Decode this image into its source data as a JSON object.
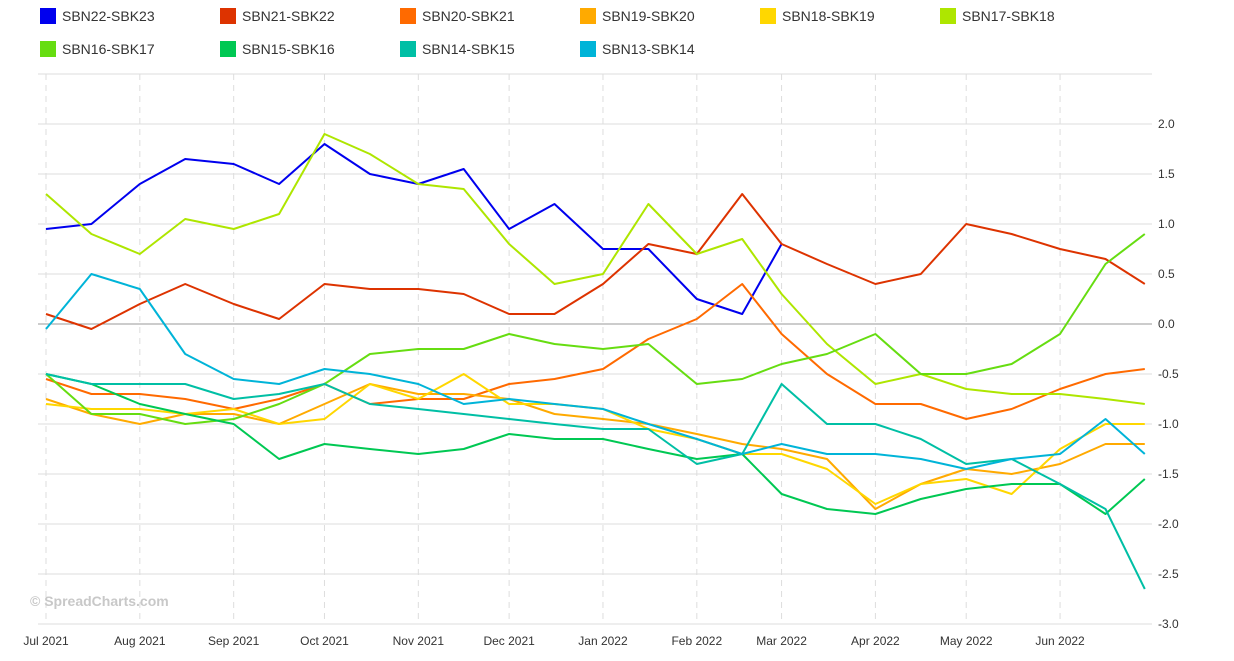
{
  "chart_data": {
    "type": "line",
    "title": "",
    "xlabel": "",
    "ylabel": "",
    "ylim": [
      -3.0,
      2.5
    ],
    "yticks": [
      "2.0",
      "1.5",
      "1.0",
      "0.5",
      "0.0",
      "-0.5",
      "-1.0",
      "-1.5",
      "-2.0",
      "-2.5",
      "-3.0"
    ],
    "ytick_values": [
      2.0,
      1.5,
      1.0,
      0.5,
      0.0,
      -0.5,
      -1.0,
      -1.5,
      -2.0,
      -2.5,
      -3.0
    ],
    "xticks": [
      {
        "label": "Jul 2021",
        "date": "2021-07-01"
      },
      {
        "label": "Aug 2021",
        "date": "2021-08-01"
      },
      {
        "label": "Sep 2021",
        "date": "2021-09-01"
      },
      {
        "label": "Oct 2021",
        "date": "2021-10-01"
      },
      {
        "label": "Nov 2021",
        "date": "2021-11-01"
      },
      {
        "label": "Dec 2021",
        "date": "2021-12-01"
      },
      {
        "label": "Jan 2022",
        "date": "2022-01-01"
      },
      {
        "label": "Feb 2022",
        "date": "2022-02-01"
      },
      {
        "label": "Mar 2022",
        "date": "2022-03-01"
      },
      {
        "label": "Apr 2022",
        "date": "2022-04-01"
      },
      {
        "label": "May 2022",
        "date": "2022-05-01"
      },
      {
        "label": "Jun 2022",
        "date": "2022-06-01"
      }
    ],
    "grid": true,
    "legend_position": "top",
    "x": [
      "2021-07-01",
      "2021-07-16",
      "2021-08-01",
      "2021-08-16",
      "2021-09-01",
      "2021-09-16",
      "2021-10-01",
      "2021-10-16",
      "2021-11-01",
      "2021-11-16",
      "2021-12-01",
      "2021-12-16",
      "2022-01-01",
      "2022-01-16",
      "2022-02-01",
      "2022-02-16",
      "2022-03-01",
      "2022-03-16",
      "2022-04-01",
      "2022-04-16",
      "2022-05-01",
      "2022-05-16",
      "2022-06-01",
      "2022-06-16",
      "2022-06-29"
    ],
    "series": [
      {
        "name": "SBN22-SBK23",
        "color": "#0000ee",
        "values": [
          0.95,
          1.0,
          1.4,
          1.65,
          1.6,
          1.4,
          1.8,
          1.5,
          1.4,
          1.55,
          0.95,
          1.2,
          0.75,
          0.75,
          0.25,
          0.1,
          0.8,
          null,
          null,
          null,
          null,
          null,
          null,
          null,
          null
        ]
      },
      {
        "name": "SBN21-SBK22",
        "color": "#dd3300",
        "values": [
          0.1,
          -0.05,
          0.2,
          0.4,
          0.2,
          0.05,
          0.4,
          0.35,
          0.35,
          0.3,
          0.1,
          0.1,
          0.4,
          0.8,
          0.7,
          1.3,
          0.8,
          0.6,
          0.4,
          0.5,
          1.0,
          0.9,
          0.75,
          0.65,
          0.4
        ]
      },
      {
        "name": "SBN20-SBK21",
        "color": "#ff6a00",
        "values": [
          -0.55,
          -0.7,
          -0.7,
          -0.75,
          -0.85,
          -0.75,
          -0.6,
          -0.8,
          -0.75,
          -0.75,
          -0.6,
          -0.55,
          -0.45,
          -0.15,
          0.05,
          0.4,
          -0.1,
          -0.5,
          -0.8,
          -0.8,
          -0.95,
          -0.85,
          -0.65,
          -0.5,
          -0.45
        ]
      },
      {
        "name": "SBN19-SBK20",
        "color": "#ffaa00",
        "values": [
          -0.75,
          -0.9,
          -1.0,
          -0.9,
          -0.9,
          -1.0,
          -0.8,
          -0.6,
          -0.7,
          -0.7,
          -0.75,
          -0.9,
          -0.95,
          -1.0,
          -1.1,
          -1.2,
          -1.25,
          -1.35,
          -1.85,
          -1.6,
          -1.45,
          -1.5,
          -1.4,
          -1.2,
          -1.2
        ]
      },
      {
        "name": "SBN18-SBK19",
        "color": "#ffd700",
        "values": [
          -0.8,
          -0.85,
          -0.85,
          -0.9,
          -0.85,
          -1.0,
          -0.95,
          -0.6,
          -0.75,
          -0.5,
          -0.8,
          -0.8,
          -0.85,
          -1.05,
          -1.15,
          -1.3,
          -1.3,
          -1.45,
          -1.8,
          -1.6,
          -1.55,
          -1.7,
          -1.25,
          -1.0,
          -1.0
        ]
      },
      {
        "name": "SBN17-SBK18",
        "color": "#aee600",
        "values": [
          1.3,
          0.9,
          0.7,
          1.05,
          0.95,
          1.1,
          1.9,
          1.7,
          1.4,
          1.35,
          0.8,
          0.4,
          0.5,
          1.2,
          0.7,
          0.85,
          0.3,
          -0.2,
          -0.6,
          -0.5,
          -0.65,
          -0.7,
          -0.7,
          -0.75,
          -0.8
        ]
      },
      {
        "name": "SBN16-SBK17",
        "color": "#66dd11",
        "values": [
          -0.5,
          -0.9,
          -0.9,
          -1.0,
          -0.95,
          -0.8,
          -0.6,
          -0.3,
          -0.25,
          -0.25,
          -0.1,
          -0.2,
          -0.25,
          -0.2,
          -0.6,
          -0.55,
          -0.4,
          -0.3,
          -0.1,
          -0.5,
          -0.5,
          -0.4,
          -0.1,
          0.6,
          0.9
        ]
      },
      {
        "name": "SBN15-SBK16",
        "color": "#00c853",
        "values": [
          -0.5,
          -0.6,
          -0.8,
          -0.9,
          -1.0,
          -1.35,
          -1.2,
          -1.25,
          -1.3,
          -1.25,
          -1.1,
          -1.15,
          -1.15,
          -1.25,
          -1.35,
          -1.3,
          -1.7,
          -1.85,
          -1.9,
          -1.75,
          -1.65,
          -1.6,
          -1.6,
          -1.9,
          -1.55
        ]
      },
      {
        "name": "SBN14-SBK15",
        "color": "#00bfa5",
        "values": [
          -0.5,
          -0.6,
          -0.6,
          -0.6,
          -0.75,
          -0.7,
          -0.6,
          -0.8,
          -0.85,
          -0.9,
          -0.95,
          -1.0,
          -1.05,
          -1.05,
          -1.4,
          -1.3,
          -0.6,
          -1.0,
          -1.0,
          -1.15,
          -1.4,
          -1.35,
          -1.6,
          -1.85,
          -2.65
        ]
      },
      {
        "name": "SBN13-SBK14",
        "color": "#00b4d8",
        "values": [
          -0.05,
          0.5,
          0.35,
          -0.3,
          -0.55,
          -0.6,
          -0.45,
          -0.5,
          -0.6,
          -0.8,
          -0.75,
          -0.8,
          -0.85,
          -1.0,
          -1.15,
          -1.3,
          -1.2,
          -1.3,
          -1.3,
          -1.35,
          -1.45,
          -1.35,
          -1.3,
          -0.95,
          -1.3
        ]
      }
    ]
  },
  "watermark": "© SpreadCharts.com"
}
